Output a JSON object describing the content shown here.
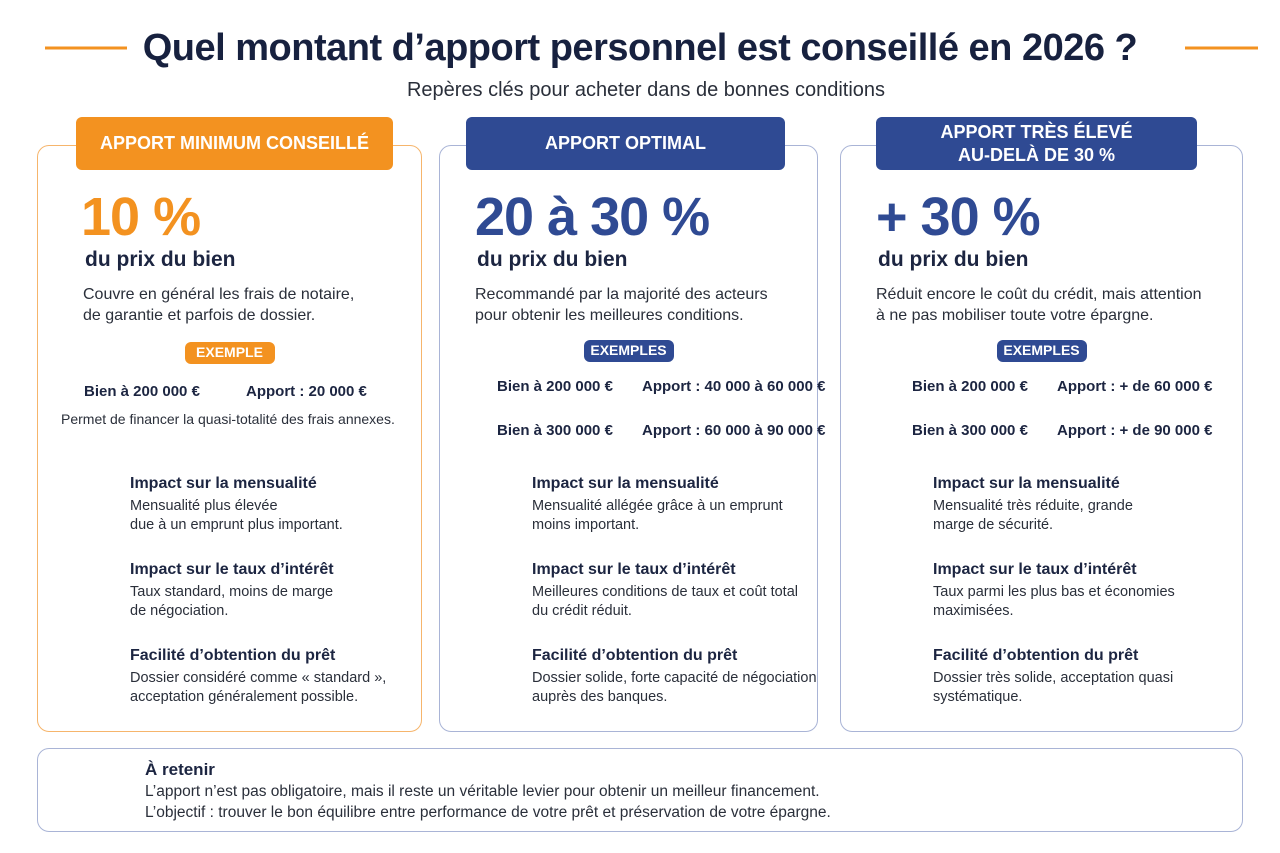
{
  "header": {
    "title": "Quel montant d’apport personnel est conseillé en 2026 ?",
    "subtitle": "Repères clés pour acheter dans de bonnes conditions"
  },
  "columns": [
    {
      "header": [
        "APPORT MINIMUM CONSEILLÉ"
      ],
      "value": "10 %",
      "value_caption": "du prix du bien",
      "description": [
        "Couvre en général les frais de notaire,",
        "de garantie et parfois de dossier."
      ],
      "examples_label": "EXEMPLE",
      "examples": [
        {
          "bien": "Bien à 200 000 €",
          "apport": "Apport : 20 000 €"
        }
      ],
      "note": "Permet de financer la quasi-totalité des frais annexes.",
      "impacts": [
        {
          "title": "Impact sur la mensualité",
          "text": [
            "Mensualité plus élevée",
            "due à un emprunt plus important."
          ]
        },
        {
          "title": "Impact sur le taux d’intérêt",
          "text": [
            "Taux standard, moins de marge",
            "de négociation."
          ]
        },
        {
          "title": "Facilité d’obtention du prêt",
          "text": [
            "Dossier considéré comme « standard »,",
            "acceptation généralement possible."
          ]
        }
      ]
    },
    {
      "header": [
        "APPORT OPTIMAL"
      ],
      "value": "20 à 30 %",
      "value_caption": "du prix du bien",
      "description": [
        "Recommandé par la majorité des acteurs",
        "pour obtenir les meilleures conditions."
      ],
      "examples_label": "EXEMPLES",
      "examples": [
        {
          "bien": "Bien à 200 000 €",
          "apport": "Apport : 40 000 à 60 000 €"
        },
        {
          "bien": "Bien à 300 000 €",
          "apport": "Apport : 60 000 à 90 000 €"
        }
      ],
      "impacts": [
        {
          "title": "Impact sur la mensualité",
          "text": [
            "Mensualité allégée grâce à un emprunt",
            "moins important."
          ]
        },
        {
          "title": "Impact sur le taux d’intérêt",
          "text": [
            "Meilleures conditions de taux et coût total",
            "du crédit réduit."
          ]
        },
        {
          "title": "Facilité d’obtention du prêt",
          "text": [
            "Dossier solide, forte capacité de négociation",
            "auprès des banques."
          ]
        }
      ]
    },
    {
      "header": [
        "APPORT TRÈS ÉLEVÉ",
        "AU-DELÀ DE 30 %"
      ],
      "value": "+ 30 %",
      "value_caption": "du prix du bien",
      "description": [
        "Réduit encore le coût du crédit, mais attention",
        "à ne pas mobiliser toute votre épargne."
      ],
      "examples_label": "EXEMPLES",
      "examples": [
        {
          "bien": "Bien à 200 000 €",
          "apport": "Apport : + de 60 000 €"
        },
        {
          "bien": "Bien à 300 000 €",
          "apport": "Apport : + de 90 000 €"
        }
      ],
      "impacts": [
        {
          "title": "Impact sur la mensualité",
          "text": [
            "Mensualité très réduite, grande",
            "marge de sécurité."
          ]
        },
        {
          "title": "Impact sur le taux d’intérêt",
          "text": [
            "Taux parmi les plus bas et économies",
            "maximisées."
          ]
        },
        {
          "title": "Facilité d’obtention du prêt",
          "text": [
            "Dossier très solide, acceptation quasi",
            "systématique."
          ]
        }
      ]
    }
  ],
  "footer": {
    "title": "À retenir",
    "lines": [
      "L’apport n’est pas obligatoire, mais il reste un véritable levier pour obtenir un meilleur financement.",
      "L’objectif : trouver le bon équilibre entre performance de votre prêt et préservation de votre épargne."
    ]
  }
}
